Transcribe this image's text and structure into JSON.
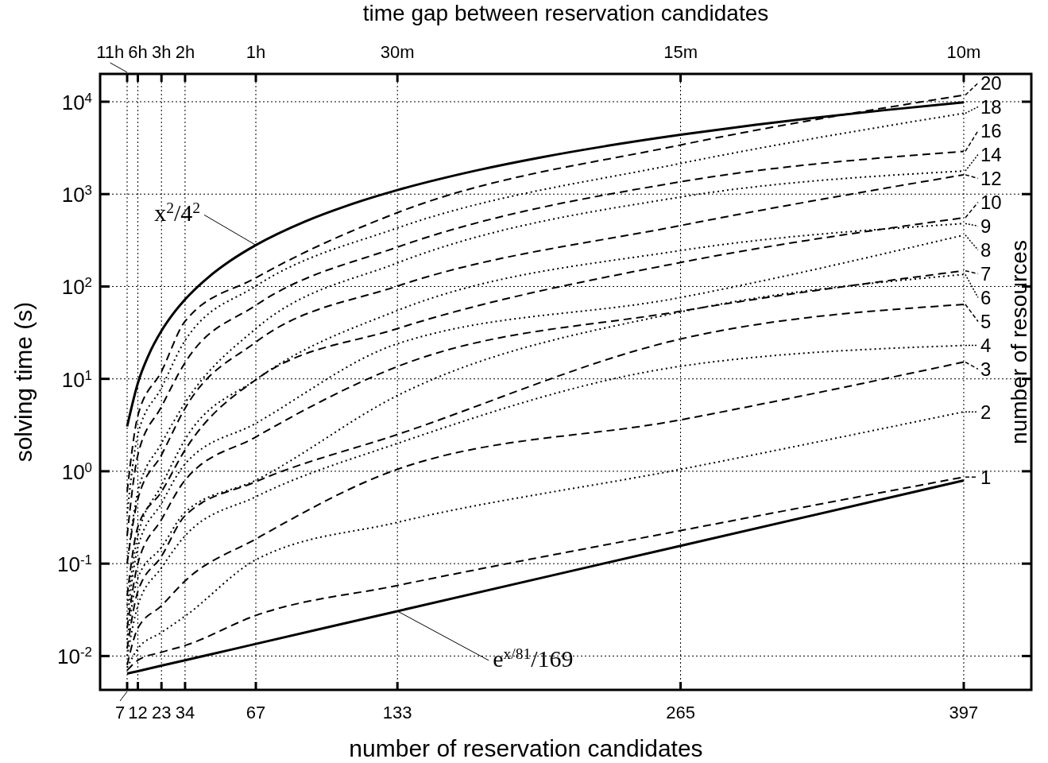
{
  "chart_data": {
    "type": "line",
    "xlabel": "number of reservation candidates",
    "ylabel": "solving time (s)",
    "x2label": "time gap between reservation candidates",
    "legend_title": "number of resources",
    "legend": "right",
    "log": "y",
    "grid": true,
    "marker": "none",
    "x": [
      7,
      12,
      23,
      34,
      67,
      133,
      265,
      397
    ],
    "xlim": [
      -5.6,
      428.5
    ],
    "xticks": [
      7,
      12,
      23,
      34,
      67,
      133,
      265,
      397
    ],
    "annotations": [
      {
        "text": "11h",
        "x": 7
      },
      {
        "text": "6h",
        "x": 12
      },
      {
        "text": "3h",
        "x": 23
      },
      {
        "text": "2h",
        "x": 34
      },
      {
        "text": "1h",
        "x": 67
      },
      {
        "text": "30m",
        "x": 133
      },
      {
        "text": "15m",
        "x": 265
      },
      {
        "text": "10m",
        "x": 397
      }
    ],
    "ylim": [
      0.0043,
      20000
    ],
    "yticks": [
      {
        "value": 0.01,
        "label": "10$^{-2}$"
      },
      {
        "value": 0.1,
        "label": "10$^{-1}$"
      },
      {
        "value": 1,
        "label": "10$^{0}$"
      },
      {
        "value": 10,
        "label": "10$^{1}$"
      },
      {
        "value": 100,
        "label": "10$^{2}$"
      },
      {
        "value": 1000,
        "label": "10$^{3}$"
      },
      {
        "value": 10000,
        "label": "10$^{4}$"
      }
    ],
    "series": [
      {
        "name": "x$^{2}$/4$^{2}$",
        "color": "#000000",
        "line_style": "solid",
        "x": [
          7,
          12,
          17,
          23,
          28,
          34,
          45,
          55,
          67,
          90,
          110,
          133,
          170,
          200,
          230,
          265,
          300,
          330,
          360,
          397
        ],
        "values": [
          3.06,
          9,
          18.06,
          33.06,
          49,
          72.25,
          126.6,
          189.1,
          280.6,
          506.3,
          756.3,
          1105.6,
          1806,
          2500,
          3306,
          4389,
          5625,
          6806,
          8100,
          9851
        ]
      },
      {
        "name": "e$^{x/81}$/169",
        "color": "#000000",
        "line_style": "solid",
        "x": [
          7,
          12,
          23,
          34,
          67,
          133,
          265,
          397
        ],
        "values": [
          0.00645,
          0.00686,
          0.00786,
          0.009,
          0.01353,
          0.0306,
          0.156,
          0.795
        ]
      },
      {
        "name": "20",
        "color": "#000000",
        "line_style": "dashed",
        "values": [
          0.6,
          4,
          12,
          42,
          124,
          630,
          3400,
          11800
        ]
      },
      {
        "name": "18",
        "color": "#000000",
        "line_style": "dotted",
        "values": [
          0.35,
          2.5,
          8,
          26,
          101,
          430,
          2150,
          7500
        ]
      },
      {
        "name": "16",
        "color": "#000000",
        "line_style": "dashed",
        "values": [
          0.2,
          1.5,
          5,
          15,
          62.6,
          267,
          1360,
          2900
        ]
      },
      {
        "name": "14",
        "color": "#000000",
        "line_style": "dotted",
        "values": [
          0.1,
          0.6,
          2,
          5.5,
          35,
          180,
          930,
          1780
        ]
      },
      {
        "name": "12",
        "color": "#000000",
        "line_style": "dashed",
        "values": [
          0.1,
          0.5,
          1.5,
          4.8,
          25,
          101,
          457,
          1620
        ]
      },
      {
        "name": "10",
        "color": "#000000",
        "line_style": "dashed",
        "values": [
          0.045,
          0.25,
          0.6,
          1.7,
          9.8,
          35,
          182,
          555
        ]
      },
      {
        "name": "9",
        "color": "#000000",
        "line_style": "dotted",
        "values": [
          0.035,
          0.2,
          0.7,
          2.2,
          9.8,
          55,
          245,
          480
        ]
      },
      {
        "name": "8",
        "color": "#000000",
        "line_style": "dotted",
        "values": [
          0.025,
          0.15,
          0.45,
          1.2,
          3.3,
          24,
          76,
          360
        ]
      },
      {
        "name": "7",
        "color": "#000000",
        "line_style": "dashed",
        "values": [
          0.02,
          0.1,
          0.3,
          0.8,
          2.35,
          13.6,
          54,
          148
        ]
      },
      {
        "name": "6",
        "color": "#000000",
        "line_style": "dotted",
        "values": [
          0.015,
          0.07,
          0.15,
          0.36,
          0.8,
          6.6,
          53,
          135
        ]
      },
      {
        "name": "5",
        "color": "#000000",
        "line_style": "dashed",
        "values": [
          0.012,
          0.05,
          0.12,
          0.33,
          0.77,
          2.5,
          27,
          64
        ]
      },
      {
        "name": "4",
        "color": "#000000",
        "line_style": "dotted",
        "values": [
          0.01,
          0.035,
          0.09,
          0.2,
          0.53,
          2,
          13.7,
          23
        ]
      },
      {
        "name": "3",
        "color": "#000000",
        "line_style": "dashed",
        "values": [
          0.008,
          0.02,
          0.035,
          0.065,
          0.185,
          1.05,
          3.6,
          15.2
        ]
      },
      {
        "name": "2",
        "color": "#000000",
        "line_style": "dotted",
        "values": [
          0.0075,
          0.012,
          0.018,
          0.027,
          0.11,
          0.28,
          1.05,
          4.4
        ]
      },
      {
        "name": "1",
        "color": "#000000",
        "line_style": "dashed",
        "values": [
          0.007,
          0.009,
          0.011,
          0.013,
          0.0275,
          0.058,
          0.228,
          0.865
        ]
      }
    ]
  }
}
